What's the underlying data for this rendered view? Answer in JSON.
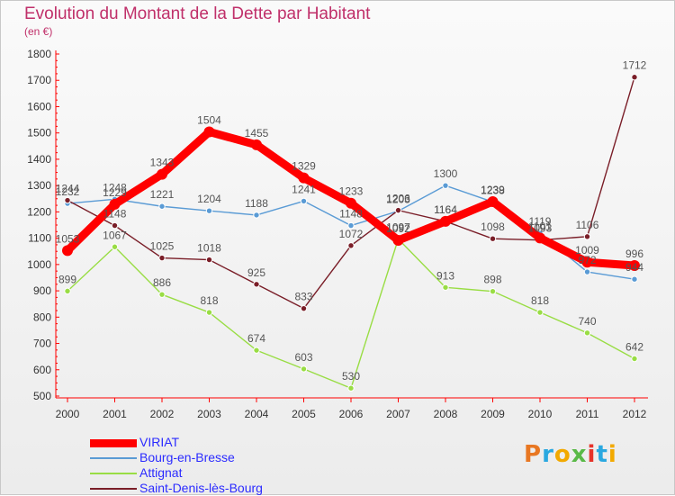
{
  "title": "Evolution du Montant de la Dette par Habitant",
  "subtitle": "(en €)",
  "logo": "Proxiti",
  "chart_data": {
    "type": "line",
    "x": [
      "2000",
      "2001",
      "2002",
      "2003",
      "2004",
      "2005",
      "2006",
      "2007",
      "2008",
      "2009",
      "2010",
      "2011",
      "2012"
    ],
    "ylim": [
      500,
      1800
    ],
    "yticks": [
      500,
      600,
      700,
      800,
      900,
      1000,
      1100,
      1200,
      1300,
      1400,
      1500,
      1600,
      1700,
      1800
    ],
    "grid": false,
    "legend_placement": "bottom-left",
    "series": [
      {
        "name": "VIRIAT",
        "color": "#ff0000",
        "values": [
          1053,
          1229,
          1343,
          1504,
          1455,
          1329,
          1233,
          1092,
          1164,
          1239,
          1101,
          1009,
          996
        ]
      },
      {
        "name": "Bourg-en-Bresse",
        "color": "#5a9bd5",
        "values": [
          1232,
          1248,
          1221,
          1204,
          1188,
          1241,
          1148,
          1203,
          1300,
          1238,
          1119,
          972,
          944
        ]
      },
      {
        "name": "Attignat",
        "color": "#99dd44",
        "values": [
          899,
          1067,
          886,
          818,
          674,
          603,
          530,
          1097,
          913,
          898,
          818,
          740,
          642
        ]
      },
      {
        "name": "Saint-Denis-lès-Bourg",
        "color": "#7a1e28",
        "values": [
          1244,
          1148,
          1025,
          1018,
          925,
          833,
          1072,
          1206,
          1164,
          1098,
          1093,
          1106,
          1712
        ]
      }
    ]
  }
}
